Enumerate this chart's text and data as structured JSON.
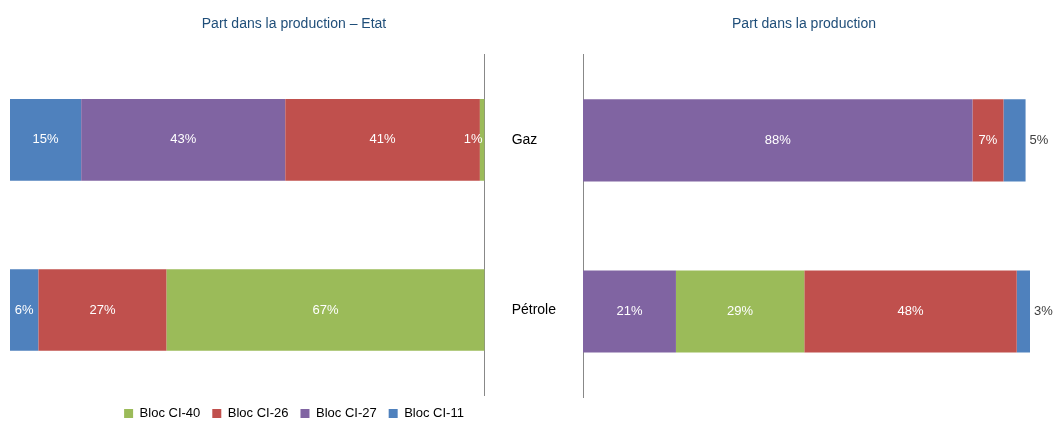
{
  "chart_data": [
    {
      "type": "bar",
      "orientation": "horizontal",
      "stacked": true,
      "title": "Part dans la production – Etat",
      "categories": [
        "Gaz",
        "Pétrole"
      ],
      "xlim": [
        100,
        0
      ],
      "tick_labels": "y",
      "legend": "bottom",
      "series": [
        {
          "name": "Bloc CI-40",
          "color": "#9bbb59",
          "values": [
            1,
            67
          ],
          "value_labels": [
            "1%",
            "67%"
          ]
        },
        {
          "name": "Bloc CI-26",
          "color": "#c0504d",
          "values": [
            41,
            27
          ],
          "value_labels": [
            "41%",
            "27%"
          ]
        },
        {
          "name": "Bloc CI-27",
          "color": "#8064a2",
          "values": [
            43,
            0
          ],
          "value_labels": [
            "43%",
            null
          ]
        },
        {
          "name": "Bloc CI-11",
          "color": "#4f81bd",
          "values": [
            15,
            6
          ],
          "value_labels": [
            "15%",
            "6%"
          ]
        }
      ]
    },
    {
      "type": "bar",
      "orientation": "horizontal",
      "stacked": true,
      "title": "Part dans la production",
      "categories": [
        null,
        null
      ],
      "xlim": [
        0,
        101
      ],
      "tick_labels": false,
      "legend": false,
      "series": [
        {
          "color": "#8064a2",
          "values": [
            88,
            21
          ],
          "value_labels": [
            "88%",
            "21%"
          ]
        },
        {
          "color": "#9bbb59",
          "values": [
            0,
            29
          ],
          "value_labels": [
            null,
            "29%"
          ]
        },
        {
          "color": "#c0504d",
          "values": [
            7,
            48
          ],
          "value_labels": [
            "7%",
            "48%"
          ]
        },
        {
          "color": "#4f81bd",
          "values": [
            5,
            3
          ],
          "value_labels": [
            "5%",
            "3%"
          ]
        }
      ]
    }
  ]
}
